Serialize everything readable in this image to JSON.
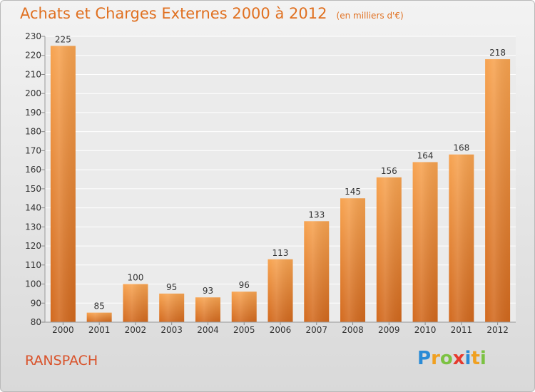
{
  "header": {
    "title": "Achats et Charges Externes 2000 à 2012",
    "unit": "(en milliers d'€)"
  },
  "footer": {
    "city": "RANSPACH",
    "logo": {
      "letters": [
        "P",
        "r",
        "o",
        "x",
        "i",
        "t",
        "i"
      ],
      "colors": [
        "#2a8bd6",
        "#f0a020",
        "#7cc242",
        "#e63a2e",
        "#2a8bd6",
        "#f0a020",
        "#7cc242"
      ]
    }
  },
  "chart_data": {
    "type": "bar",
    "title": "Achats et Charges Externes 2000 à 2012",
    "subtitle": "(en milliers d'€)",
    "xlabel": "",
    "ylabel": "",
    "categories": [
      "2000",
      "2001",
      "2002",
      "2003",
      "2004",
      "2005",
      "2006",
      "2007",
      "2008",
      "2009",
      "2010",
      "2011",
      "2012"
    ],
    "values": [
      225,
      85,
      100,
      95,
      93,
      96,
      113,
      133,
      145,
      156,
      164,
      168,
      218
    ],
    "ylim": [
      80,
      230
    ],
    "ytick_step": 10,
    "grid": true,
    "bar_color": "#f0913a",
    "bar_color_dark": "#d2691e"
  }
}
